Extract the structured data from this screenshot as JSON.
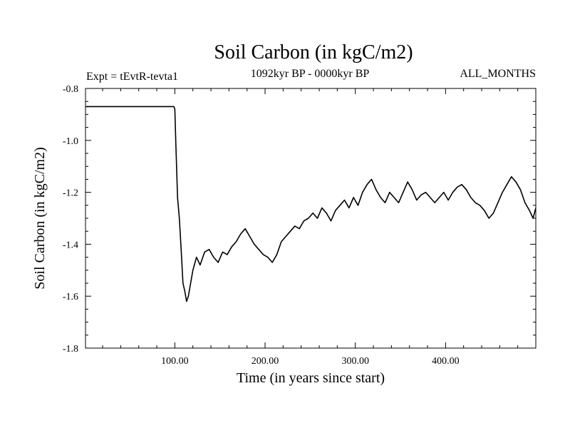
{
  "chart_data": {
    "type": "line",
    "title": "Soil Carbon (in kgC/m2)",
    "subtitle_left": "Expt = tEvtR-tevta1",
    "subtitle_center": "1092kyr BP - 0000kyr BP",
    "subtitle_right": "ALL_MONTHS",
    "xlabel": "Time (in years since start)",
    "ylabel": "Soil Carbon (in kgC/m2)",
    "xlim": [
      1,
      500
    ],
    "ylim": [
      -1.8,
      -0.8
    ],
    "x_ticks": [
      {
        "value": 100,
        "label": "100.00"
      },
      {
        "value": 200,
        "label": "200.00"
      },
      {
        "value": 300,
        "label": "300.00"
      },
      {
        "value": 400,
        "label": "400.00"
      }
    ],
    "y_ticks": [
      {
        "value": -0.8,
        "label": "-0.8"
      },
      {
        "value": -1.0,
        "label": "-1.0"
      },
      {
        "value": -1.2,
        "label": "-1.2"
      },
      {
        "value": -1.4,
        "label": "-1.4"
      },
      {
        "value": -1.6,
        "label": "-1.6"
      },
      {
        "value": -1.8,
        "label": "-1.8"
      }
    ],
    "series": [
      {
        "name": "Soil Carbon",
        "color": "#000000",
        "x": [
          1,
          50,
          99,
          100,
          101,
          103,
          105,
          107,
          109,
          111,
          113,
          115,
          117,
          120,
          124,
          128,
          133,
          138,
          143,
          148,
          153,
          158,
          163,
          168,
          173,
          178,
          183,
          188,
          193,
          198,
          203,
          208,
          213,
          218,
          223,
          228,
          233,
          238,
          243,
          248,
          253,
          258,
          263,
          268,
          273,
          278,
          283,
          288,
          293,
          298,
          303,
          308,
          313,
          318,
          323,
          328,
          333,
          338,
          343,
          348,
          353,
          358,
          363,
          368,
          373,
          378,
          383,
          388,
          393,
          398,
          403,
          408,
          413,
          418,
          423,
          428,
          433,
          438,
          443,
          448,
          453,
          458,
          463,
          468,
          473,
          478,
          483,
          488,
          493,
          497,
          500
        ],
        "y": [
          -0.87,
          -0.87,
          -0.87,
          -0.88,
          -1.0,
          -1.22,
          -1.3,
          -1.42,
          -1.55,
          -1.58,
          -1.62,
          -1.6,
          -1.56,
          -1.5,
          -1.45,
          -1.48,
          -1.43,
          -1.42,
          -1.45,
          -1.47,
          -1.43,
          -1.44,
          -1.41,
          -1.39,
          -1.36,
          -1.34,
          -1.37,
          -1.4,
          -1.42,
          -1.44,
          -1.45,
          -1.47,
          -1.44,
          -1.39,
          -1.37,
          -1.35,
          -1.33,
          -1.34,
          -1.31,
          -1.3,
          -1.28,
          -1.3,
          -1.26,
          -1.28,
          -1.31,
          -1.27,
          -1.25,
          -1.23,
          -1.26,
          -1.22,
          -1.25,
          -1.2,
          -1.17,
          -1.15,
          -1.19,
          -1.22,
          -1.24,
          -1.2,
          -1.22,
          -1.24,
          -1.2,
          -1.16,
          -1.19,
          -1.23,
          -1.21,
          -1.2,
          -1.22,
          -1.24,
          -1.22,
          -1.2,
          -1.23,
          -1.2,
          -1.18,
          -1.17,
          -1.19,
          -1.22,
          -1.24,
          -1.25,
          -1.27,
          -1.3,
          -1.28,
          -1.24,
          -1.2,
          -1.17,
          -1.14,
          -1.16,
          -1.19,
          -1.24,
          -1.27,
          -1.3,
          -1.26
        ]
      }
    ]
  }
}
